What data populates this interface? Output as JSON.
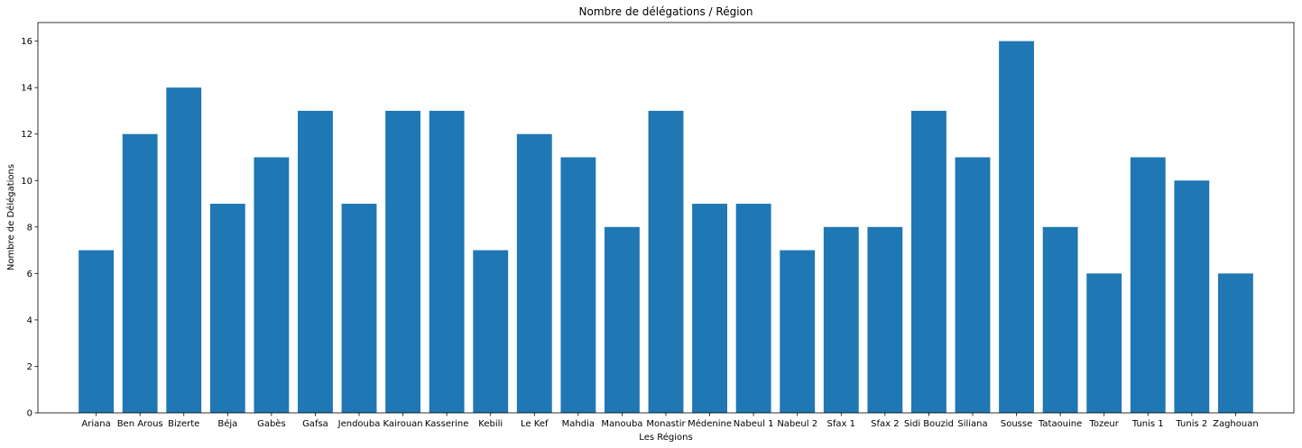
{
  "chart_data": {
    "type": "bar",
    "title": "Nombre de délégations / Région",
    "xlabel": "Les Régions",
    "ylabel": "Nombre de Délégations",
    "categories": [
      "Ariana",
      "Ben Arous",
      "Bizerte",
      "Béja",
      "Gabès",
      "Gafsa",
      "Jendouba",
      "Kairouan",
      "Kasserine",
      "Kebili",
      "Le Kef",
      "Mahdia",
      "Manouba",
      "Monastir",
      "Médenine",
      "Nabeul 1",
      "Nabeul 2",
      "Sfax 1",
      "Sfax 2",
      "Sidi Bouzid",
      "Siliana",
      "Sousse",
      "Tataouine",
      "Tozeur",
      "Tunis 1",
      "Tunis 2",
      "Zaghouan"
    ],
    "values": [
      7,
      12,
      14,
      9,
      11,
      13,
      9,
      13,
      13,
      7,
      12,
      11,
      8,
      13,
      9,
      9,
      7,
      8,
      8,
      13,
      11,
      16,
      8,
      6,
      11,
      10,
      6
    ],
    "ylim": [
      0,
      16.8
    ],
    "yticks": [
      0,
      2,
      4,
      6,
      8,
      10,
      12,
      14,
      16
    ],
    "bar_color": "#1f77b4",
    "grid": false,
    "legend": "none"
  }
}
